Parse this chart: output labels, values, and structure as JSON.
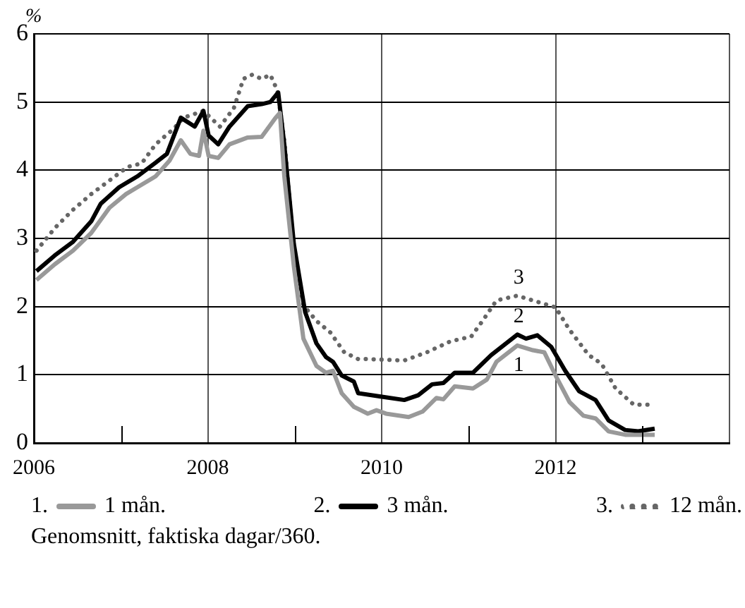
{
  "chart_data": {
    "type": "line",
    "ylabel": "%",
    "xlim": [
      2006,
      2014
    ],
    "ylim": [
      0,
      6
    ],
    "xticks": [
      2006,
      {
        "value": 2007,
        "label": null
      },
      2008,
      {
        "value": 2009,
        "label": null
      },
      2010,
      {
        "value": 2011,
        "label": null
      },
      2012,
      {
        "value": 2013,
        "label": null
      },
      {
        "value": 2014,
        "label": null
      }
    ],
    "yticks": [
      0,
      1,
      2,
      3,
      4,
      5,
      6
    ],
    "grid": true,
    "legend": "bottom",
    "marker": "none",
    "series": [
      {
        "name": "1 mån.",
        "color": "#999999",
        "line_style": "solid",
        "x": [
          2006.03,
          2006.24,
          2006.45,
          2006.66,
          2006.87,
          2007.06,
          2007.19,
          2007.4,
          2007.56,
          2007.69,
          2007.8,
          2007.9,
          2007.95,
          2008.01,
          2008.12,
          2008.25,
          2008.46,
          2008.62,
          2008.78,
          2008.83,
          2008.88,
          2008.99,
          2009.1,
          2009.25,
          2009.36,
          2009.44,
          2009.54,
          2009.68,
          2009.84,
          2009.94,
          2010.05,
          2010.31,
          2010.47,
          2010.63,
          2010.71,
          2010.84,
          2011.05,
          2011.21,
          2011.32,
          2011.56,
          2011.74,
          2011.87,
          2012.0,
          2012.16,
          2012.32,
          2012.46,
          2012.61,
          2012.8,
          2013.14
        ],
        "values": [
          2.39,
          2.62,
          2.82,
          3.08,
          3.45,
          3.65,
          3.75,
          3.91,
          4.14,
          4.44,
          4.24,
          4.21,
          4.58,
          4.21,
          4.18,
          4.38,
          4.48,
          4.49,
          4.77,
          4.84,
          3.91,
          2.59,
          1.53,
          1.13,
          1.03,
          1.06,
          0.73,
          0.53,
          0.43,
          0.48,
          0.43,
          0.38,
          0.46,
          0.66,
          0.64,
          0.83,
          0.8,
          0.93,
          1.19,
          1.43,
          1.36,
          1.33,
          0.99,
          0.6,
          0.4,
          0.36,
          0.17,
          0.12,
          0.12
        ]
      },
      {
        "name": "3 mån.",
        "color": "#000000",
        "line_style": "solid",
        "x": [
          2006.03,
          2006.24,
          2006.45,
          2006.66,
          2006.77,
          2006.98,
          2007.19,
          2007.4,
          2007.53,
          2007.69,
          2007.85,
          2007.95,
          2008.01,
          2008.12,
          2008.25,
          2008.46,
          2008.62,
          2008.72,
          2008.81,
          2008.88,
          2008.99,
          2009.12,
          2009.25,
          2009.36,
          2009.44,
          2009.54,
          2009.68,
          2009.73,
          2009.99,
          2010.26,
          2010.42,
          2010.58,
          2010.71,
          2010.84,
          2011.05,
          2011.26,
          2011.56,
          2011.66,
          2011.79,
          2011.95,
          2012.11,
          2012.27,
          2012.46,
          2012.61,
          2012.8,
          2012.95,
          2013.14
        ],
        "values": [
          2.52,
          2.75,
          2.95,
          3.25,
          3.51,
          3.75,
          3.91,
          4.11,
          4.24,
          4.77,
          4.64,
          4.87,
          4.51,
          4.38,
          4.64,
          4.94,
          4.97,
          5.0,
          5.14,
          4.38,
          2.92,
          1.92,
          1.46,
          1.26,
          1.19,
          0.99,
          0.9,
          0.73,
          0.68,
          0.63,
          0.7,
          0.86,
          0.88,
          1.03,
          1.03,
          1.29,
          1.59,
          1.53,
          1.58,
          1.41,
          1.06,
          0.76,
          0.63,
          0.33,
          0.19,
          0.17,
          0.21
        ]
      },
      {
        "name": "12 mån.",
        "color": "#666666",
        "line_style": "dotted",
        "x": [
          2006.03,
          2006.24,
          2006.45,
          2006.66,
          2006.87,
          2007.08,
          2007.24,
          2007.4,
          2007.61,
          2007.72,
          2007.95,
          2008.14,
          2008.3,
          2008.41,
          2008.51,
          2008.62,
          2008.72,
          2008.8,
          2008.88,
          2008.99,
          2009.1,
          2009.25,
          2009.41,
          2009.57,
          2009.73,
          2009.84,
          2010.26,
          2010.52,
          2010.79,
          2011.03,
          2011.16,
          2011.32,
          2011.56,
          2011.79,
          2012.0,
          2012.16,
          2012.38,
          2012.53,
          2012.69,
          2012.9,
          2013.06
        ],
        "values": [
          2.82,
          3.15,
          3.42,
          3.65,
          3.85,
          4.05,
          4.1,
          4.38,
          4.61,
          4.77,
          4.87,
          4.64,
          4.91,
          5.34,
          5.4,
          5.34,
          5.4,
          5.17,
          4.44,
          2.85,
          2.02,
          1.79,
          1.62,
          1.33,
          1.23,
          1.23,
          1.21,
          1.33,
          1.49,
          1.56,
          1.79,
          2.09,
          2.16,
          2.07,
          1.99,
          1.66,
          1.29,
          1.16,
          0.8,
          0.56,
          0.56
        ]
      }
    ],
    "annotations": [
      "1",
      "2",
      "3",
      "1.",
      "2.",
      "3.",
      "Genomsnitt, faktiska dagar/360."
    ]
  }
}
